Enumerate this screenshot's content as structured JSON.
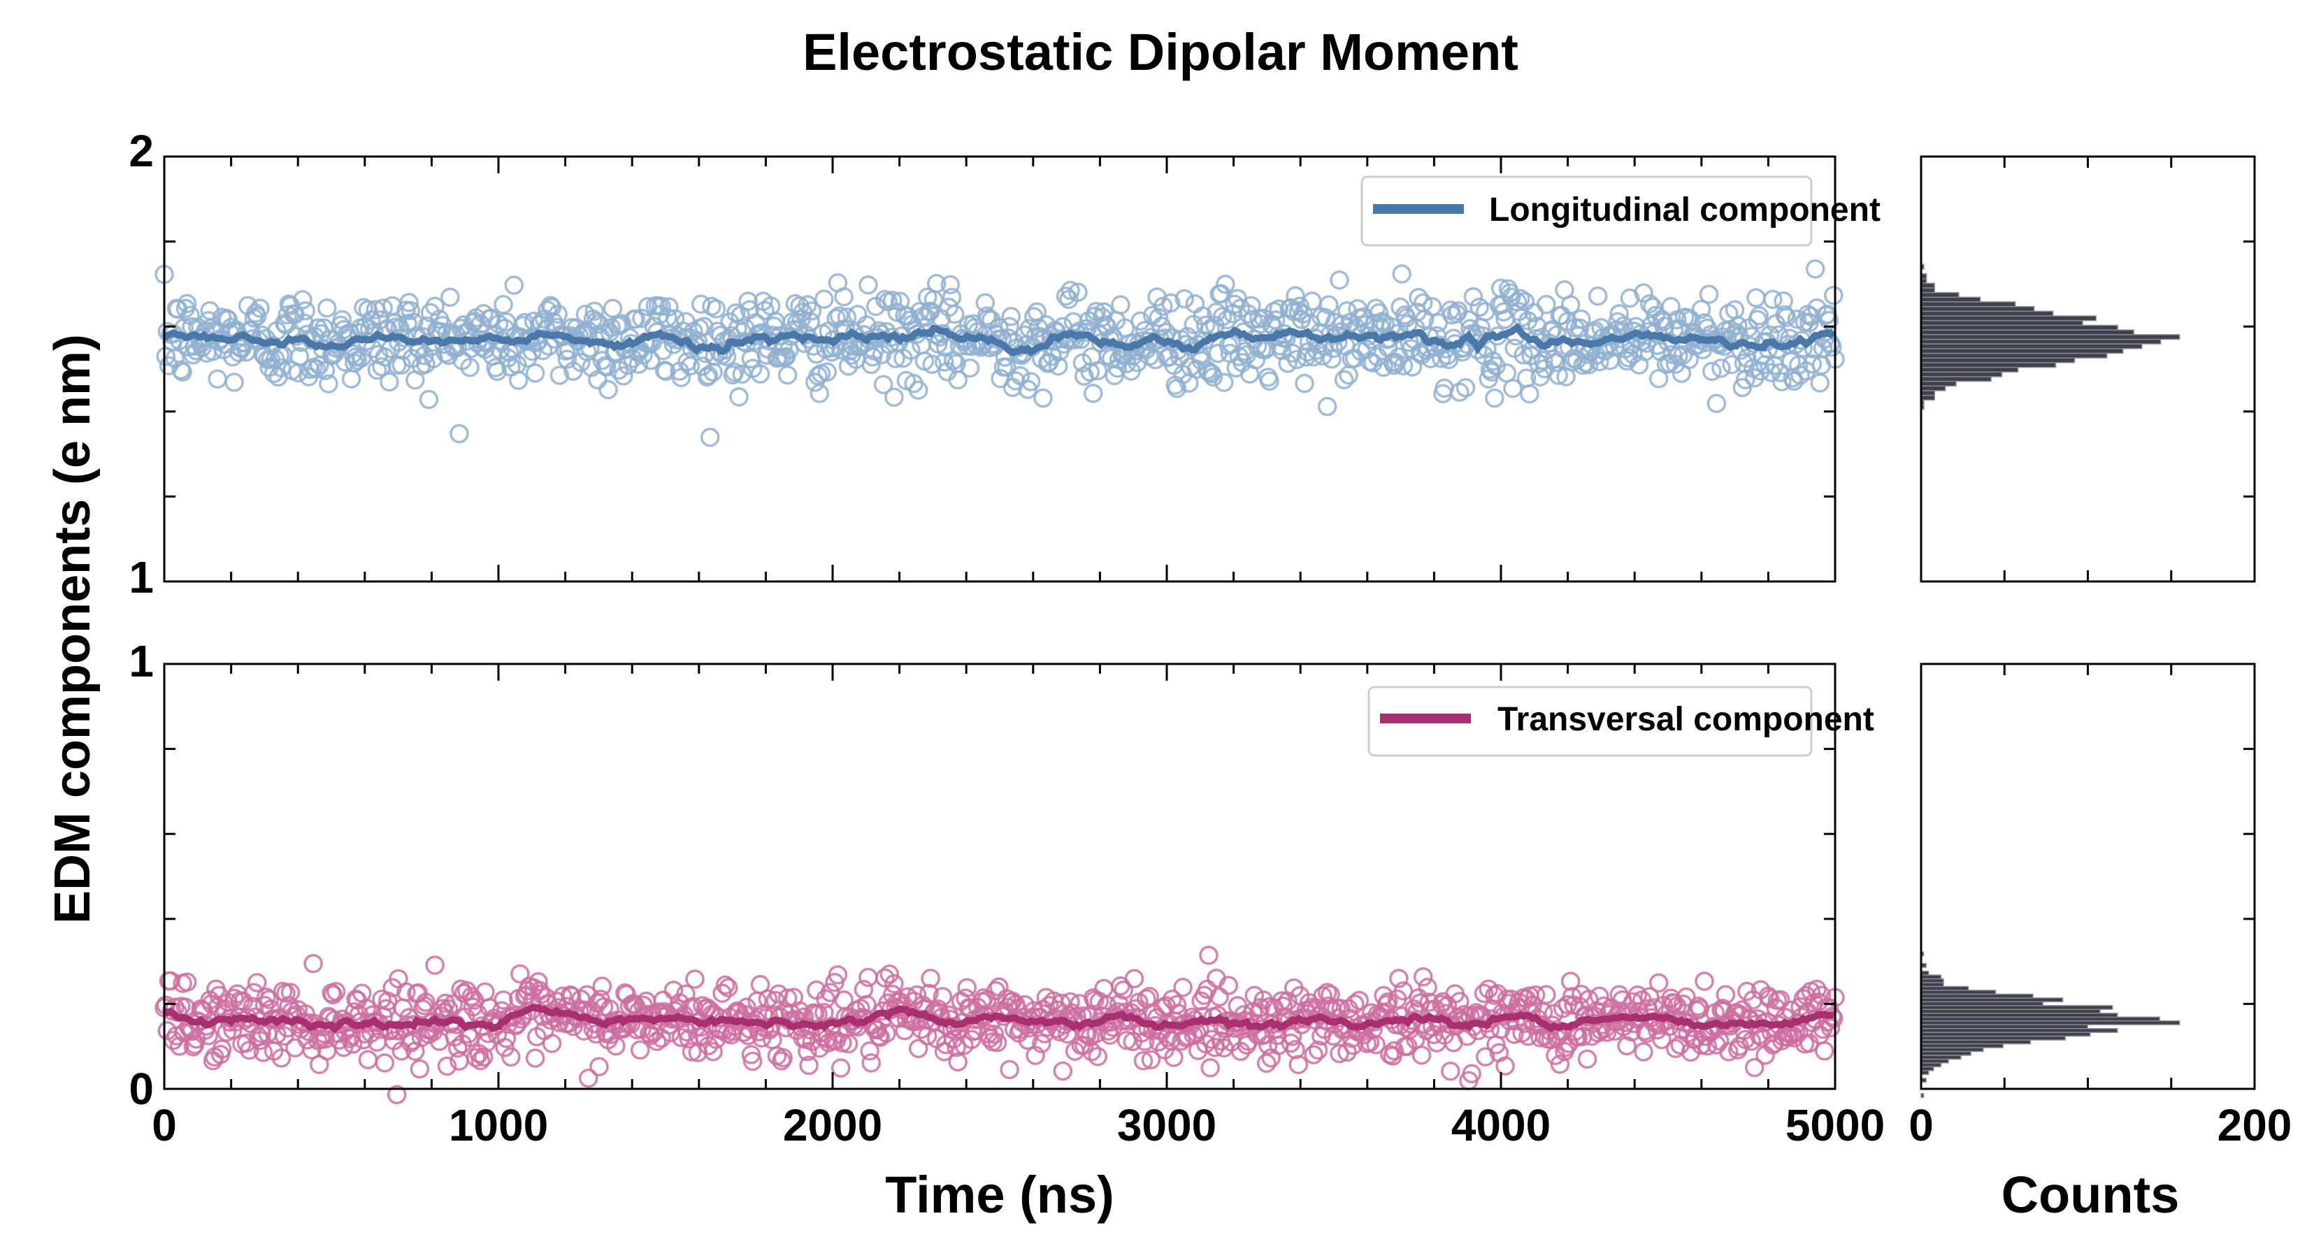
{
  "chart_data": {
    "type": "scatter",
    "title": "Electrostatic Dipolar Moment",
    "ylabel": "EDM components (e nm)",
    "xlabel": "Time (ns)",
    "hist_xlabel": "Counts",
    "xlim": [
      0,
      5000
    ],
    "x_ticks": [
      0,
      1000,
      2000,
      3000,
      4000,
      5000
    ],
    "x_tick_labels": [
      "0",
      "1000",
      "2000",
      "3000",
      "4000",
      "5000"
    ],
    "hist_xlim": [
      0,
      200
    ],
    "hist_x_tick_labels": [
      "0",
      "200"
    ],
    "panels": [
      {
        "name": "longitudinal",
        "legend": "Longitudinal component",
        "color": "#4a78a8",
        "marker_color": "#8fb0d0",
        "ylim": [
          1,
          2
        ],
        "y_tick_labels": [
          "1",
          "2"
        ],
        "mean": 1.57,
        "scatter_std": 0.055,
        "rolling_amplitude": 0.025,
        "n_points": 1100,
        "hist_peak_count": 155
      },
      {
        "name": "transversal",
        "legend": "Transversal component",
        "color": "#a8306e",
        "marker_color": "#cc6fa0",
        "ylim": [
          0,
          1
        ],
        "y_tick_labels": [
          "0",
          "1"
        ],
        "mean": 0.16,
        "scatter_std": 0.045,
        "rolling_amplitude": 0.02,
        "n_points": 1100,
        "hist_peak_count": 155
      }
    ],
    "hist_color": "#2b2b3a"
  }
}
